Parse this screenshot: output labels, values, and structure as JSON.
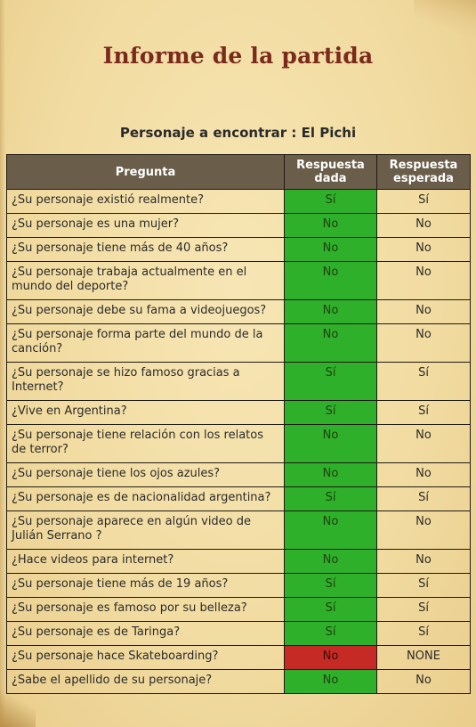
{
  "report": {
    "title": "Informe de la partida",
    "subtitle": "Personaje a encontrar : El Pichi"
  },
  "table": {
    "headers": {
      "question": "Pregunta",
      "given": "Respuesta dada",
      "expected": "Respuesta esperada"
    },
    "colors": {
      "match": "#2fb02a",
      "mismatch": "#c62a25",
      "header_bg": "#6a5d49"
    },
    "rows": [
      {
        "q": "¿Su personaje existió realmente?",
        "given": "Sí",
        "expected": "Sí",
        "match": true
      },
      {
        "q": "¿Su personaje es una mujer?",
        "given": "No",
        "expected": "No",
        "match": true
      },
      {
        "q": "¿Su personaje tiene más de 40 años?",
        "given": "No",
        "expected": "No",
        "match": true
      },
      {
        "q": "¿Su personaje trabaja actualmente en el mundo del deporte?",
        "given": "No",
        "expected": "No",
        "match": true
      },
      {
        "q": "¿Su personaje debe su fama a videojuegos?",
        "given": "No",
        "expected": "No",
        "match": true
      },
      {
        "q": "¿Su personaje forma parte del mundo de la canción?",
        "given": "No",
        "expected": "No",
        "match": true
      },
      {
        "q": "¿Su personaje se hizo famoso gracias a Internet?",
        "given": "Sí",
        "expected": "Sí",
        "match": true
      },
      {
        "q": "¿Vive en Argentina?",
        "given": "Sí",
        "expected": "Sí",
        "match": true
      },
      {
        "q": "¿Su personaje tiene relación con los relatos de terror?",
        "given": "No",
        "expected": "No",
        "match": true
      },
      {
        "q": "¿Su personaje tiene los ojos azules?",
        "given": "No",
        "expected": "No",
        "match": true
      },
      {
        "q": "¿Su personaje es de nacionalidad argentina?",
        "given": "Sí",
        "expected": "Sí",
        "match": true
      },
      {
        "q": "¿Su personaje aparece en algún video de Julián Serrano ?",
        "given": "No",
        "expected": "No",
        "match": true
      },
      {
        "q": "¿Hace videos para internet?",
        "given": "No",
        "expected": "No",
        "match": true
      },
      {
        "q": "¿Su personaje tiene más de 19 años?",
        "given": "Sí",
        "expected": "Sí",
        "match": true
      },
      {
        "q": "¿Su personaje es famoso por su belleza?",
        "given": "Sí",
        "expected": "Sí",
        "match": true
      },
      {
        "q": "¿Su personaje es de Taringa?",
        "given": "Sí",
        "expected": "Sí",
        "match": true
      },
      {
        "q": "¿Su personaje hace Skateboarding?",
        "given": "No",
        "expected": "NONE",
        "match": false
      },
      {
        "q": "¿Sabe el apellido de su personaje?",
        "given": "No",
        "expected": "No",
        "match": true
      }
    ]
  }
}
